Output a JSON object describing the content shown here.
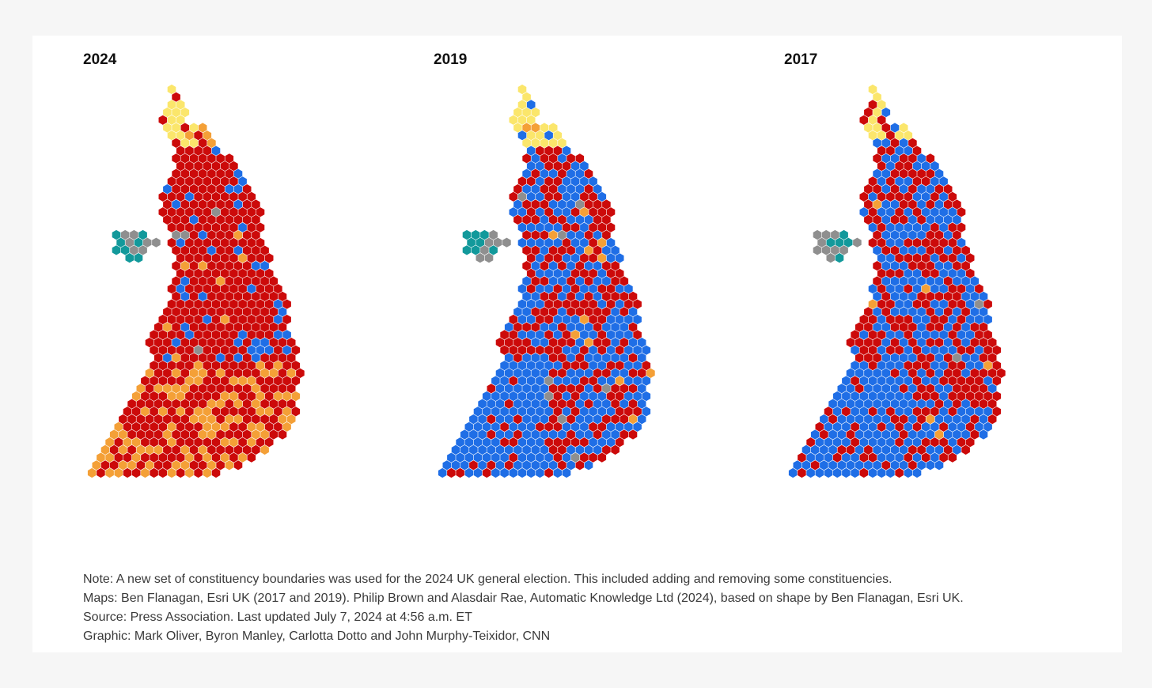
{
  "maps": [
    {
      "year_label": "2024"
    },
    {
      "year_label": "2019"
    },
    {
      "year_label": "2017"
    }
  ],
  "colors": {
    "labour": "#cc0a0a",
    "conservative": "#1f6ee6",
    "libdem": "#f4a037",
    "snp": "#fbe66b",
    "ni_teal": "#12999b",
    "other_gray": "#8f8f8f"
  },
  "footnotes": [
    "Note: A new set of constituency boundaries was used for the 2024 UK general election. This included adding and removing some constituencies.",
    "Maps: Ben Flanagan, Esri UK (2017 and 2019). Philip Brown and Alasdair Rae, Automatic Knowledge Ltd (2024), based on shape by Ben Flanagan, Esri UK.",
    "Source: Press Association. Last updated July 7, 2024 at 4:56 a.m. ET",
    "Graphic: Mark Oliver, Byron Manley, Carlotta Dotto and John Murphy-Teixidor, CNN"
  ]
}
